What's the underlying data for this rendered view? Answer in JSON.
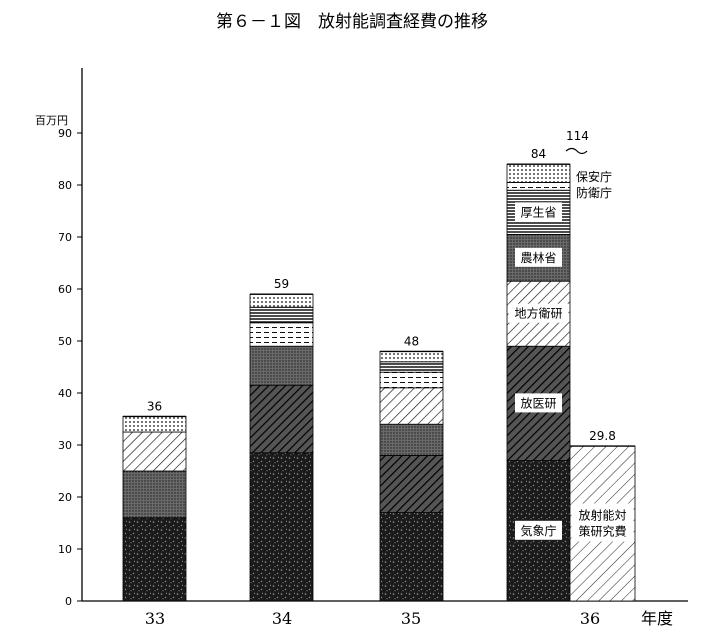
{
  "chart_data": {
    "type": "bar",
    "stacked": true,
    "title": "第６－１図　放射能調査経費の推移",
    "ylabel": "百万円",
    "xlabel": "年度",
    "ylim": [
      0,
      100
    ],
    "yticks": [
      "0",
      "10",
      "20",
      "30",
      "40",
      "50",
      "60",
      "70",
      "80",
      "90"
    ],
    "grid": false,
    "bars": [
      {
        "category": "33",
        "total_label": "36",
        "segments": [
          {
            "label": "",
            "value": 16,
            "pattern": "speckle-dark"
          },
          {
            "label": "",
            "value": 9,
            "pattern": "dots-dense"
          },
          {
            "label": "",
            "value": 7.5,
            "pattern": "diag"
          },
          {
            "label": "",
            "value": 3,
            "pattern": "dots"
          }
        ]
      },
      {
        "category": "34",
        "total_label": "59",
        "segments": [
          {
            "label": "",
            "value": 28.5,
            "pattern": "speckle-dark"
          },
          {
            "label": "",
            "value": 13,
            "pattern": "diag-dark"
          },
          {
            "label": "",
            "value": 7.5,
            "pattern": "dots-dense"
          },
          {
            "label": "",
            "value": 4.5,
            "pattern": "dashes"
          },
          {
            "label": "",
            "value": 3,
            "pattern": "hlines"
          },
          {
            "label": "",
            "value": 2.5,
            "pattern": "dots"
          }
        ]
      },
      {
        "category": "35",
        "total_label": "48",
        "segments": [
          {
            "label": "",
            "value": 17,
            "pattern": "speckle-dark"
          },
          {
            "label": "",
            "value": 11,
            "pattern": "diag-dark"
          },
          {
            "label": "",
            "value": 6,
            "pattern": "dots-dense"
          },
          {
            "label": "",
            "value": 7,
            "pattern": "diag"
          },
          {
            "label": "",
            "value": 3,
            "pattern": "dashes"
          },
          {
            "label": "",
            "value": 2,
            "pattern": "hlines"
          },
          {
            "label": "",
            "value": 2,
            "pattern": "dots"
          }
        ]
      },
      {
        "category": "36",
        "total_label": "84",
        "segments": [
          {
            "label": "気象庁",
            "value": 27,
            "pattern": "speckle-dark"
          },
          {
            "label": "放医研",
            "value": 22,
            "pattern": "diag-dark"
          },
          {
            "label": "地方衛研",
            "value": 12.5,
            "pattern": "diag"
          },
          {
            "label": "農林省",
            "value": 9,
            "pattern": "dots-dense"
          },
          {
            "label": "厚生省",
            "value": 8.5,
            "pattern": "hlines"
          },
          {
            "label": "",
            "value": 1.5,
            "pattern": "dashes"
          },
          {
            "label": "",
            "value": 3.5,
            "pattern": "dots"
          }
        ]
      },
      {
        "category": "",
        "total_label": "29.8",
        "segments": [
          {
            "label": "放射能対策研究費",
            "value": 29.8,
            "pattern": "diag-light"
          }
        ]
      }
    ],
    "annotations": [
      {
        "text": "114"
      },
      {
        "text": "保安庁"
      },
      {
        "text": "防衛庁"
      }
    ]
  }
}
